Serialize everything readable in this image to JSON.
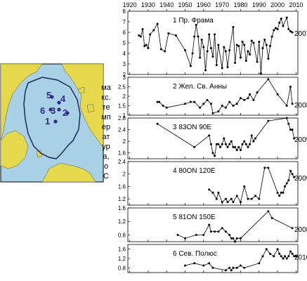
{
  "map": {
    "markers": [
      {
        "label": "1"
      },
      {
        "label": "2"
      },
      {
        "label": "3"
      },
      {
        "label": "4"
      },
      {
        "label": "5"
      },
      {
        "label": "6"
      }
    ],
    "colors": {
      "ocean": "#a9d1e6",
      "land": "#e6d84c",
      "marker": "#2f2c8a",
      "frame": "#000000"
    }
  },
  "chart_data": {
    "type": "line",
    "x_ticks": [
      1920,
      1930,
      1940,
      1950,
      1960,
      1970,
      1980,
      1990,
      2000,
      2010
    ],
    "xlim": [
      1919,
      2011
    ],
    "ylabel_line1": "макс. температура,",
    "ylabel_line2": "оС",
    "panels": [
      {
        "label": "1  Пр. Фрама",
        "year_label": "2007",
        "ylim": [
          2,
          8
        ],
        "yticks": [
          2,
          3,
          4,
          5,
          6,
          7,
          8
        ],
        "x": [
          1925,
          1926,
          1927,
          1928,
          1929,
          1930,
          1931,
          1933,
          1935,
          1937,
          1939,
          1941,
          1945,
          1950,
          1953,
          1954,
          1955,
          1956,
          1957,
          1958,
          1959,
          1960,
          1961,
          1962,
          1963,
          1964,
          1965,
          1966,
          1967,
          1968,
          1970,
          1971,
          1972,
          1973,
          1974,
          1976,
          1977,
          1978,
          1979,
          1980,
          1981,
          1982,
          1983,
          1984,
          1985,
          1986,
          1987,
          1989,
          1990,
          1991,
          1992,
          1993,
          1994,
          1995,
          1996,
          1997,
          1998,
          1999,
          2000,
          2001,
          2002,
          2003,
          2005,
          2006,
          2007,
          2008
        ],
        "y": [
          5.7,
          5.6,
          6.3,
          4.7,
          4.8,
          4.5,
          5.8,
          6.2,
          6.8,
          4.4,
          4.2,
          5.9,
          5.7,
          4.3,
          2.8,
          4.0,
          5.6,
          6.7,
          5.6,
          3.6,
          5.3,
          4.6,
          2.4,
          4.2,
          5.8,
          4.5,
          3.7,
          5.8,
          2.9,
          4.8,
          2.6,
          4.6,
          4.2,
          2.7,
          4.3,
          6.5,
          3.1,
          4.8,
          4.7,
          3.6,
          5.1,
          4.8,
          3.3,
          4.2,
          3.9,
          5.2,
          5.0,
          3.2,
          5.1,
          2.1,
          4.5,
          5.3,
          4.8,
          3.5,
          4.7,
          5.6,
          6.2,
          6.4,
          6.3,
          6.9,
          7.3,
          6.6,
          7.4,
          6.3,
          6.1,
          6.0
        ]
      },
      {
        "label": "2  Жел. Св. Анны",
        "year_label": "2008",
        "ylim": [
          1,
          3
        ],
        "yticks": [
          1,
          1.5,
          2,
          2.5,
          3
        ],
        "x": [
          1935,
          1936,
          1938,
          1940,
          1950,
          1953,
          1955,
          1958,
          1960,
          1962,
          1964,
          1965,
          1968,
          1970,
          1972,
          1974,
          1976,
          1978,
          1980,
          1982,
          1984,
          1985,
          1987,
          1989,
          1995,
          2000,
          2005,
          2007,
          2008
        ],
        "y": [
          1.7,
          1.7,
          1.5,
          1.4,
          1.6,
          1.7,
          1.7,
          1.4,
          1.6,
          1.8,
          1.6,
          1.1,
          1.2,
          1.5,
          1.4,
          1.7,
          1.5,
          1.6,
          1.9,
          1.8,
          1.9,
          2.1,
          1.8,
          2.2,
          2.9,
          2.1,
          1.5,
          2.5,
          1.6
        ]
      },
      {
        "label": "3  83ON 90E",
        "year_label": "2009",
        "ylim": [
          1.4,
          2.8
        ],
        "yticks": [
          1.6,
          2,
          2.4,
          2.8
        ],
        "x": [
          1935,
          1955,
          1963,
          1964,
          1965,
          1966,
          1967,
          1968,
          1969,
          1970,
          1971,
          1972,
          1973,
          1974,
          1975,
          1976,
          1977,
          1978,
          1979,
          1980,
          1981,
          1982,
          1983,
          1984,
          1985,
          1986,
          1987,
          1988,
          1995,
          2005,
          2006,
          2007,
          2008,
          2009
        ],
        "y": [
          2.6,
          1.8,
          2.2,
          1.9,
          1.6,
          1.5,
          1.9,
          1.9,
          1.8,
          1.9,
          2.1,
          1.9,
          1.8,
          1.9,
          2.0,
          1.8,
          1.8,
          1.7,
          1.8,
          1.7,
          1.9,
          2.0,
          1.9,
          1.8,
          1.9,
          2.2,
          2.0,
          2.1,
          2.7,
          2.8,
          2.6,
          2.4,
          2.4,
          2.1
        ]
      },
      {
        "label": "4  80ON 120E",
        "year_label": "2009",
        "ylim": [
          1,
          2.4
        ],
        "yticks": [
          1.2,
          1.6,
          2,
          2.4
        ],
        "x": [
          1963,
          1965,
          1967,
          1968,
          1970,
          1972,
          1973,
          1975,
          1976,
          1978,
          1980,
          1982,
          1984,
          1986,
          1988,
          1990,
          1993,
          1995,
          2000,
          2001,
          2002,
          2003,
          2004,
          2005,
          2006,
          2007,
          2008,
          2009
        ],
        "y": [
          1.5,
          1.4,
          1.2,
          1.4,
          1.1,
          1.2,
          1.1,
          1.2,
          1.1,
          1.3,
          1.1,
          1.6,
          1.2,
          1.2,
          1.3,
          1.2,
          2.2,
          2.2,
          1.4,
          1.3,
          1.4,
          1.4,
          1.6,
          1.7,
          1.8,
          2.1,
          2.0,
          1.9
        ]
      },
      {
        "label": "5  81ON 150E",
        "year_label": "2008",
        "ylim": [
          0.6,
          1.6
        ],
        "yticks": [
          0.8,
          1.2,
          1.6
        ],
        "x": [
          1946,
          1950,
          1956,
          1960,
          1963,
          1964,
          1966,
          1968,
          1970,
          1972,
          1974,
          1975,
          1976,
          1977,
          1978,
          1980,
          1995,
          1997,
          2008
        ],
        "y": [
          0.8,
          0.7,
          0.8,
          0.8,
          1.1,
          0.9,
          0.9,
          0.9,
          1.0,
          0.9,
          0.8,
          0.7,
          0.7,
          0.6,
          0.7,
          0.7,
          1.5,
          1.3,
          1.0
        ]
      },
      {
        "label": "6  Сев. Полюс",
        "year_label": "2010",
        "ylim": [
          0.6,
          1.8
        ],
        "yticks": [
          0.8,
          1.2,
          1.6
        ],
        "x": [
          1950,
          1955,
          1960,
          1963,
          1965,
          1972,
          1974,
          1975,
          1976,
          1978,
          1980,
          1982,
          1990,
          1992,
          1994,
          1996,
          1998,
          2000,
          2001,
          2002,
          2003,
          2004,
          2005,
          2006,
          2007,
          2008,
          2009,
          2010
        ],
        "y": [
          0.9,
          1.0,
          0.9,
          1.0,
          0.8,
          0.7,
          0.8,
          0.7,
          0.8,
          0.8,
          0.9,
          0.8,
          1.0,
          1.3,
          1.6,
          1.4,
          1.3,
          1.6,
          1.4,
          1.3,
          1.2,
          1.3,
          1.2,
          1.3,
          1.5,
          1.4,
          1.3,
          1.3
        ]
      }
    ]
  }
}
